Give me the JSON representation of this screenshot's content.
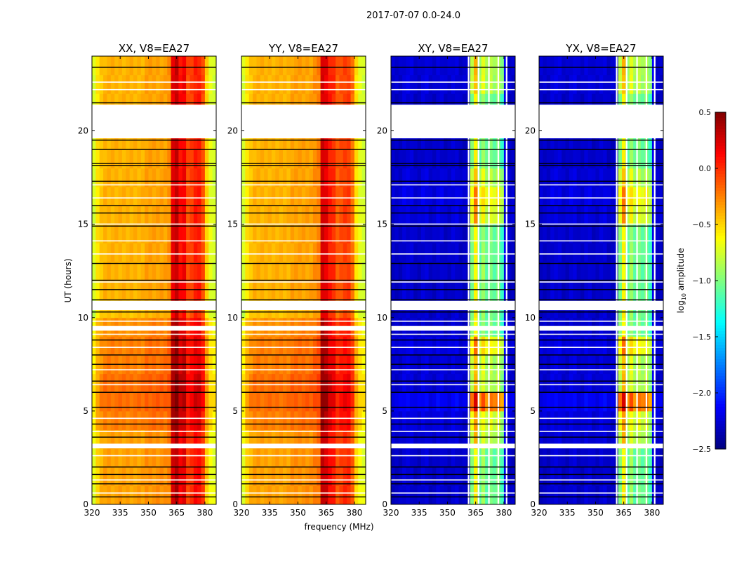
{
  "chart_data": {
    "type": "heatmap",
    "title": "2017-07-07 0.0-24.0",
    "xlabel": "frequency (MHz)",
    "ylabel": "UT (hours)",
    "xlim": [
      320,
      386
    ],
    "ylim": [
      0,
      24
    ],
    "xticks": [
      320,
      335,
      350,
      365,
      380
    ],
    "yticks": [
      0,
      5,
      10,
      15,
      20
    ],
    "freq_bin_start": 320,
    "freq_bin_width": 2,
    "time_bin_width": 1,
    "colorbar": {
      "label": "log10 amplitude",
      "label_main": "log",
      "label_sub": "10",
      "label_rest": " amplitude",
      "range": [
        -2.5,
        0.5
      ],
      "ticks": [
        "0.5",
        "0.0",
        "−0.5",
        "−1.0",
        "−1.5",
        "−2.0",
        "−2.5"
      ],
      "tick_values": [
        0.5,
        0.0,
        -0.5,
        -1.0,
        -1.5,
        -2.0,
        -2.5
      ],
      "colormap": "jet"
    },
    "flagged_time_ranges": [
      [
        19.6,
        21.4
      ],
      [
        10.4,
        10.9
      ],
      [
        9.3,
        9.55
      ],
      [
        3.0,
        3.25
      ]
    ],
    "black_lines_hours": [
      23.4,
      21.5,
      19.5,
      19.0,
      18.25,
      18.15,
      17.3,
      16.0,
      15.6,
      14.9,
      12.9,
      12.0,
      11.5,
      10.95,
      10.3,
      8.8,
      8.0,
      7.5,
      6.6,
      6.0,
      5.2,
      4.3,
      3.6,
      2.0,
      1.6,
      1.1,
      0.4
    ],
    "white_lines_hours": [
      22.6,
      22.2,
      17.1,
      16.4,
      15.0,
      14.1,
      13.4,
      11.9,
      9.8,
      9.1,
      8.4,
      7.2,
      6.4,
      4.6,
      3.9,
      2.6,
      1.3,
      0.6
    ],
    "panels": [
      {
        "title": "XX, V8=EA27",
        "spectrum": [
          -0.75,
          -0.55,
          -0.45,
          -0.4,
          -0.4,
          -0.4,
          -0.4,
          -0.4,
          -0.4,
          -0.4,
          -0.4,
          -0.4,
          -0.4,
          -0.4,
          -0.35,
          -0.35,
          -0.35,
          -0.35,
          -0.35,
          -0.35,
          -0.3,
          0.2,
          0.3,
          0.1,
          0.15,
          -0.1,
          -0.05,
          0.05,
          0.05,
          -0.1,
          -0.5,
          -0.7,
          -0.75
        ],
        "time_offset": [
          0.05,
          0.05,
          0.05,
          0.05,
          0.15,
          0.2,
          0.2,
          0.15,
          0.15,
          0.1,
          -0.05,
          0,
          0,
          0,
          0,
          0,
          0,
          0,
          0,
          0,
          0,
          0,
          0,
          0
        ],
        "flagged_channels": []
      },
      {
        "title": "YY, V8=EA27",
        "spectrum": [
          -0.75,
          -0.55,
          -0.45,
          -0.4,
          -0.4,
          -0.4,
          -0.4,
          -0.4,
          -0.4,
          -0.4,
          -0.4,
          -0.4,
          -0.4,
          -0.35,
          -0.35,
          -0.35,
          -0.35,
          -0.35,
          -0.35,
          -0.3,
          -0.25,
          0.25,
          0.2,
          0.05,
          0.0,
          -0.15,
          -0.1,
          -0.05,
          -0.05,
          -0.2,
          -0.55,
          -0.7,
          -0.75
        ],
        "time_offset": [
          0.05,
          0.05,
          0.05,
          0.05,
          0.15,
          0.2,
          0.2,
          0.15,
          0.15,
          0.1,
          -0.05,
          0,
          0,
          0,
          0,
          0,
          0,
          0,
          0,
          0,
          0,
          0,
          0,
          0
        ],
        "flagged_channels": []
      },
      {
        "title": "XY, V8=EA27",
        "spectrum": [
          -2.3,
          -2.3,
          -2.3,
          -2.25,
          -2.25,
          -2.25,
          -2.3,
          -2.3,
          -2.25,
          -2.25,
          -2.3,
          -2.3,
          -2.25,
          -2.25,
          -2.3,
          -2.3,
          -2.25,
          -2.25,
          -2.3,
          -2.3,
          -2.3,
          -1.0,
          -0.6,
          -1.1,
          -0.9,
          -1.1,
          -1.0,
          -1.1,
          -1.0,
          -1.2,
          -2.2,
          -2.3,
          -2.3
        ],
        "time_offset": [
          0,
          0,
          0,
          0.2,
          0.3,
          0.8,
          0.2,
          0.2,
          0.4,
          0,
          0,
          0,
          0,
          0,
          0,
          0.3,
          0.4,
          0.2,
          0,
          0,
          0,
          0,
          0.2,
          0.2
        ],
        "flagged_channels": [
          361.2,
          366.5,
          372.0,
          377.0,
          381.4
        ]
      },
      {
        "title": "YX, V8=EA27",
        "spectrum": [
          -2.3,
          -2.3,
          -2.3,
          -2.25,
          -2.25,
          -2.25,
          -2.3,
          -2.3,
          -2.25,
          -2.25,
          -2.3,
          -2.3,
          -2.25,
          -2.25,
          -2.3,
          -2.3,
          -2.25,
          -2.25,
          -2.3,
          -2.3,
          -2.3,
          -1.0,
          -0.6,
          -1.1,
          -0.9,
          -1.1,
          -1.0,
          -1.1,
          -1.0,
          -1.2,
          -2.2,
          -2.3,
          -2.3
        ],
        "time_offset": [
          0,
          0,
          0,
          0.2,
          0.3,
          0.8,
          0.2,
          0.2,
          0.4,
          0,
          0,
          0,
          0,
          0,
          0,
          0.3,
          0.4,
          0.2,
          0,
          0,
          0,
          0,
          0.2,
          0.2
        ],
        "flagged_channels": [
          361.2,
          366.5,
          372.0,
          377.0,
          381.4
        ]
      }
    ]
  }
}
